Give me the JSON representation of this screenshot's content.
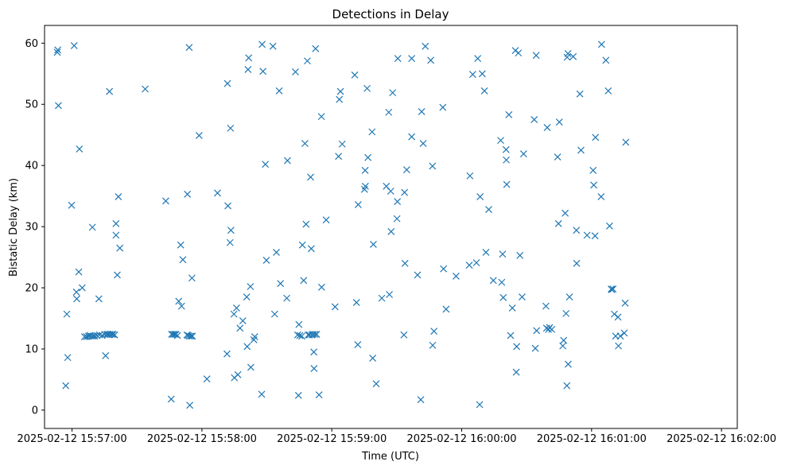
{
  "chart_data": {
    "type": "scatter",
    "title": "Detections in Delay",
    "xlabel": "Time (UTC)",
    "ylabel": "Bistatic Delay (km)",
    "marker": "x",
    "color": "#1f77b4",
    "grid": false,
    "x_unit": "seconds since 2025-02-12 15:57:00",
    "xlim": [
      -12.7,
      307.3
    ],
    "ylim": [
      -3.0,
      62.9
    ],
    "x_ticks": [
      {
        "value": 0,
        "label": "2025-02-12 15:57:00"
      },
      {
        "value": 60,
        "label": "2025-02-12 15:58:00"
      },
      {
        "value": 120,
        "label": "2025-02-12 15:59:00"
      },
      {
        "value": 180,
        "label": "2025-02-12 16:00:00"
      },
      {
        "value": 240,
        "label": "2025-02-12 16:01:00"
      },
      {
        "value": 300,
        "label": "2025-02-12 16:02:00"
      }
    ],
    "y_ticks": [
      {
        "value": 0,
        "label": "0"
      },
      {
        "value": 10,
        "label": "10"
      },
      {
        "value": 20,
        "label": "20"
      },
      {
        "value": 30,
        "label": "30"
      },
      {
        "value": 40,
        "label": "40"
      },
      {
        "value": 50,
        "label": "50"
      },
      {
        "value": 60,
        "label": "60"
      }
    ],
    "points": [
      [
        -6.8,
        58.5
      ],
      [
        -6.6,
        58.9
      ],
      [
        -6.3,
        49.8
      ],
      [
        -2.9,
        4.0
      ],
      [
        -2.4,
        15.7
      ],
      [
        -2.0,
        8.6
      ],
      [
        -0.2,
        33.5
      ],
      [
        1.0,
        59.6
      ],
      [
        2.0,
        19.3
      ],
      [
        2.2,
        18.2
      ],
      [
        3.1,
        22.6
      ],
      [
        3.4,
        42.7
      ],
      [
        4.7,
        20.0
      ],
      [
        5.8,
        12.0
      ],
      [
        6.7,
        12.0
      ],
      [
        7.6,
        12.1
      ],
      [
        8.2,
        12.2
      ],
      [
        8.8,
        12.1
      ],
      [
        9.4,
        29.9
      ],
      [
        9.7,
        12.1
      ],
      [
        10.4,
        12.1
      ],
      [
        11.5,
        12.2
      ],
      [
        12.4,
        18.2
      ],
      [
        12.7,
        12.3
      ],
      [
        13.9,
        12.2
      ],
      [
        15.1,
        12.4
      ],
      [
        15.5,
        8.9
      ],
      [
        16.1,
        12.4
      ],
      [
        16.7,
        12.4
      ],
      [
        17.3,
        52.1
      ],
      [
        17.5,
        12.4
      ],
      [
        18.3,
        12.4
      ],
      [
        19.0,
        12.4
      ],
      [
        19.7,
        12.3
      ],
      [
        20.3,
        30.5
      ],
      [
        20.3,
        28.6
      ],
      [
        20.9,
        22.1
      ],
      [
        21.4,
        34.9
      ],
      [
        22.1,
        26.5
      ],
      [
        33.8,
        52.5
      ],
      [
        43.3,
        34.2
      ],
      [
        45.8,
        1.8
      ],
      [
        46.0,
        12.4
      ],
      [
        46.7,
        12.4
      ],
      [
        47.4,
        12.4
      ],
      [
        48.0,
        12.4
      ],
      [
        48.7,
        12.2
      ],
      [
        49.3,
        17.8
      ],
      [
        50.2,
        27.0
      ],
      [
        50.6,
        17.0
      ],
      [
        51.2,
        24.6
      ],
      [
        53.1,
        12.3
      ],
      [
        53.3,
        35.3
      ],
      [
        53.6,
        12.2
      ],
      [
        54.1,
        59.3
      ],
      [
        54.2,
        12.1
      ],
      [
        54.4,
        0.8
      ],
      [
        55.0,
        12.1
      ],
      [
        55.4,
        21.6
      ],
      [
        55.6,
        12.1
      ],
      [
        58.7,
        44.9
      ],
      [
        62.3,
        5.1
      ],
      [
        67.2,
        35.5
      ],
      [
        71.6,
        9.2
      ],
      [
        71.8,
        53.4
      ],
      [
        72.0,
        33.4
      ],
      [
        73.0,
        27.4
      ],
      [
        73.2,
        46.1
      ],
      [
        73.4,
        29.4
      ],
      [
        74.8,
        15.7
      ],
      [
        75.0,
        5.3
      ],
      [
        76.0,
        16.7
      ],
      [
        76.6,
        5.8
      ],
      [
        77.6,
        13.4
      ],
      [
        78.9,
        14.6
      ],
      [
        80.7,
        18.5
      ],
      [
        80.9,
        10.4
      ],
      [
        81.3,
        55.7
      ],
      [
        81.6,
        57.6
      ],
      [
        82.4,
        20.2
      ],
      [
        82.6,
        7.0
      ],
      [
        84.0,
        11.5
      ],
      [
        84.4,
        12.0
      ],
      [
        87.6,
        2.6
      ],
      [
        87.8,
        59.8
      ],
      [
        88.2,
        55.4
      ],
      [
        89.3,
        40.2
      ],
      [
        89.8,
        24.5
      ],
      [
        92.8,
        59.5
      ],
      [
        93.6,
        15.7
      ],
      [
        94.4,
        25.8
      ],
      [
        95.7,
        52.2
      ],
      [
        96.3,
        20.7
      ],
      [
        99.2,
        18.3
      ],
      [
        99.5,
        40.8
      ],
      [
        103.2,
        55.3
      ],
      [
        104.2,
        12.3
      ],
      [
        104.6,
        2.4
      ],
      [
        104.8,
        14.0
      ],
      [
        105.2,
        12.2
      ],
      [
        106.1,
        12.1
      ],
      [
        106.4,
        27.0
      ],
      [
        107.0,
        21.2
      ],
      [
        107.6,
        43.6
      ],
      [
        108.1,
        30.4
      ],
      [
        108.7,
        57.1
      ],
      [
        109.1,
        12.3
      ],
      [
        109.7,
        12.3
      ],
      [
        110.2,
        38.1
      ],
      [
        110.5,
        26.4
      ],
      [
        110.8,
        12.3
      ],
      [
        111.3,
        12.4
      ],
      [
        111.7,
        9.5
      ],
      [
        111.8,
        6.8
      ],
      [
        112.2,
        12.4
      ],
      [
        112.5,
        59.1
      ],
      [
        113.0,
        12.4
      ],
      [
        114.1,
        2.5
      ],
      [
        115.2,
        48.0
      ],
      [
        115.3,
        20.1
      ],
      [
        117.4,
        31.1
      ],
      [
        121.5,
        16.9
      ],
      [
        123.1,
        41.5
      ],
      [
        123.5,
        50.8
      ],
      [
        124.0,
        52.1
      ],
      [
        124.8,
        43.5
      ],
      [
        130.6,
        54.8
      ],
      [
        131.4,
        17.6
      ],
      [
        132.0,
        10.7
      ],
      [
        132.2,
        33.6
      ],
      [
        135.1,
        36.1
      ],
      [
        135.4,
        39.2
      ],
      [
        135.5,
        36.6
      ],
      [
        136.3,
        52.6
      ],
      [
        136.7,
        41.3
      ],
      [
        138.6,
        45.5
      ],
      [
        138.9,
        8.5
      ],
      [
        139.2,
        27.1
      ],
      [
        140.5,
        4.3
      ],
      [
        143.1,
        18.3
      ],
      [
        145.2,
        36.6
      ],
      [
        146.3,
        48.7
      ],
      [
        146.6,
        18.9
      ],
      [
        147.2,
        35.8
      ],
      [
        147.4,
        29.2
      ],
      [
        148.1,
        51.9
      ],
      [
        150.1,
        31.3
      ],
      [
        150.3,
        34.1
      ],
      [
        150.5,
        57.5
      ],
      [
        153.3,
        12.3
      ],
      [
        153.6,
        35.6
      ],
      [
        153.8,
        24.0
      ],
      [
        154.6,
        39.3
      ],
      [
        156.9,
        44.7
      ],
      [
        156.9,
        57.5
      ],
      [
        159.6,
        22.1
      ],
      [
        161.1,
        1.7
      ],
      [
        161.5,
        48.8
      ],
      [
        162.2,
        43.6
      ],
      [
        163.2,
        59.5
      ],
      [
        165.7,
        57.2
      ],
      [
        166.5,
        39.9
      ],
      [
        166.6,
        10.6
      ],
      [
        167.2,
        12.9
      ],
      [
        171.3,
        49.5
      ],
      [
        171.6,
        23.1
      ],
      [
        172.8,
        16.5
      ],
      [
        177.4,
        21.9
      ],
      [
        183.5,
        23.7
      ],
      [
        183.8,
        38.3
      ],
      [
        185.1,
        54.9
      ],
      [
        186.8,
        24.1
      ],
      [
        187.4,
        57.5
      ],
      [
        188.3,
        0.9
      ],
      [
        188.5,
        34.9
      ],
      [
        189.5,
        55.0
      ],
      [
        190.5,
        52.2
      ],
      [
        191.2,
        25.8
      ],
      [
        192.5,
        32.8
      ],
      [
        194.6,
        21.2
      ],
      [
        198.0,
        44.1
      ],
      [
        198.5,
        20.9
      ],
      [
        198.9,
        25.5
      ],
      [
        199.2,
        18.4
      ],
      [
        200.5,
        42.6
      ],
      [
        200.6,
        40.9
      ],
      [
        200.8,
        36.9
      ],
      [
        201.8,
        48.3
      ],
      [
        202.6,
        12.2
      ],
      [
        203.4,
        16.7
      ],
      [
        204.8,
        58.8
      ],
      [
        205.2,
        6.2
      ],
      [
        205.4,
        10.4
      ],
      [
        206.2,
        58.4
      ],
      [
        206.9,
        25.3
      ],
      [
        207.9,
        18.5
      ],
      [
        208.6,
        41.9
      ],
      [
        213.5,
        47.5
      ],
      [
        214.0,
        10.1
      ],
      [
        214.4,
        58.0
      ],
      [
        214.6,
        13.0
      ],
      [
        218.9,
        17.0
      ],
      [
        219.2,
        13.4
      ],
      [
        219.5,
        46.2
      ],
      [
        220.1,
        13.2
      ],
      [
        220.6,
        13.5
      ],
      [
        221.6,
        13.2
      ],
      [
        224.3,
        41.4
      ],
      [
        224.7,
        30.5
      ],
      [
        225.1,
        47.1
      ],
      [
        226.7,
        10.5
      ],
      [
        227.1,
        11.4
      ],
      [
        227.8,
        32.2
      ],
      [
        228.2,
        15.8
      ],
      [
        228.6,
        4.0
      ],
      [
        228.7,
        57.7
      ],
      [
        229.1,
        58.3
      ],
      [
        229.2,
        7.5
      ],
      [
        229.8,
        18.5
      ],
      [
        231.5,
        57.8
      ],
      [
        233.0,
        29.4
      ],
      [
        233.1,
        24.0
      ],
      [
        234.6,
        51.7
      ],
      [
        235.1,
        42.5
      ],
      [
        237.9,
        28.6
      ],
      [
        240.7,
        39.2
      ],
      [
        241.0,
        36.8
      ],
      [
        241.6,
        28.5
      ],
      [
        241.8,
        44.6
      ],
      [
        244.4,
        34.9
      ],
      [
        244.6,
        59.8
      ],
      [
        246.6,
        57.2
      ],
      [
        247.7,
        52.2
      ],
      [
        248.3,
        30.1
      ],
      [
        249.1,
        19.8
      ],
      [
        249.3,
        19.7
      ],
      [
        249.9,
        19.8
      ],
      [
        250.5,
        15.7
      ],
      [
        251.1,
        12.1
      ],
      [
        252.2,
        15.2
      ],
      [
        252.4,
        10.5
      ],
      [
        253.3,
        12.1
      ],
      [
        255.1,
        12.6
      ],
      [
        255.5,
        17.5
      ],
      [
        255.8,
        43.8
      ]
    ]
  }
}
